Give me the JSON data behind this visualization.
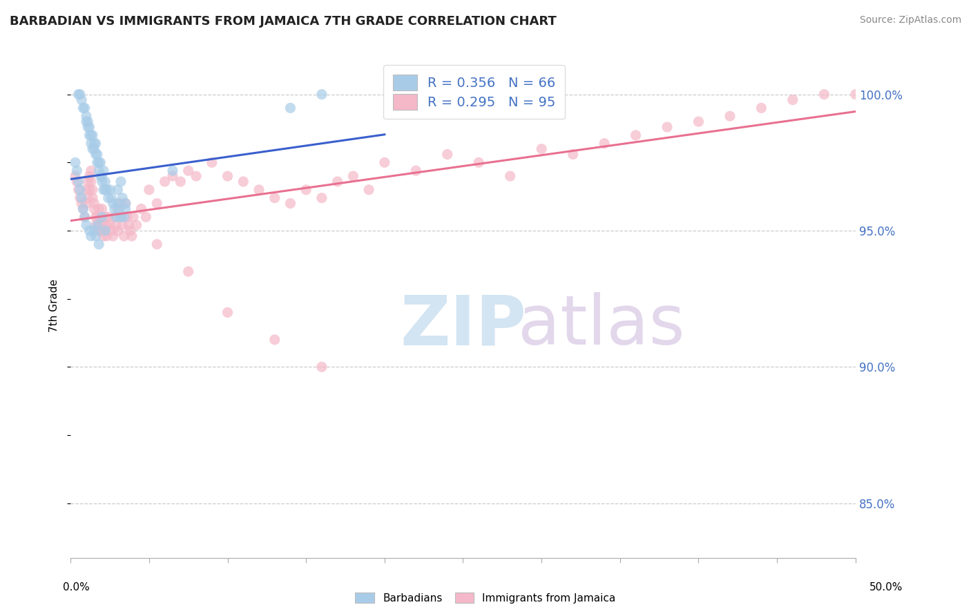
{
  "title": "BARBADIAN VS IMMIGRANTS FROM JAMAICA 7TH GRADE CORRELATION CHART",
  "source": "Source: ZipAtlas.com",
  "ylabel": "7th Grade",
  "ylabel_right_ticks": [
    "85.0%",
    "90.0%",
    "95.0%",
    "100.0%"
  ],
  "ylabel_right_values": [
    85.0,
    90.0,
    95.0,
    100.0
  ],
  "xlim": [
    0.0,
    50.0
  ],
  "ylim": [
    83.0,
    101.5
  ],
  "legend_blue_label": "R = 0.356   N = 66",
  "legend_pink_label": "R = 0.295   N = 95",
  "blue_color": "#a8cce8",
  "pink_color": "#f4b8c8",
  "trend_blue": "#3a5fcd",
  "trend_pink": "#e87090",
  "barbadians_x": [
    0.5,
    0.6,
    0.7,
    0.8,
    0.9,
    1.0,
    1.0,
    1.1,
    1.1,
    1.2,
    1.2,
    1.3,
    1.3,
    1.4,
    1.4,
    1.5,
    1.5,
    1.6,
    1.6,
    1.7,
    1.7,
    1.8,
    1.8,
    1.9,
    1.9,
    2.0,
    2.0,
    2.1,
    2.1,
    2.2,
    2.2,
    2.3,
    2.4,
    2.5,
    2.6,
    2.7,
    2.8,
    2.9,
    3.0,
    3.1,
    3.2,
    3.3,
    3.4,
    3.5,
    0.3,
    0.4,
    0.5,
    0.6,
    0.7,
    0.8,
    0.9,
    1.0,
    1.2,
    1.3,
    1.5,
    1.6,
    1.7,
    1.8,
    2.0,
    2.2,
    3.0,
    3.2,
    3.5,
    6.5,
    14.0,
    16.0
  ],
  "barbadians_y": [
    100.0,
    100.0,
    99.8,
    99.5,
    99.5,
    99.2,
    99.0,
    99.0,
    98.8,
    98.5,
    98.8,
    98.5,
    98.2,
    98.0,
    98.5,
    98.2,
    98.0,
    97.8,
    98.2,
    97.5,
    97.8,
    97.5,
    97.2,
    97.5,
    97.0,
    97.0,
    96.8,
    96.5,
    97.2,
    96.5,
    96.8,
    96.5,
    96.2,
    96.5,
    96.2,
    96.0,
    95.8,
    95.5,
    96.0,
    95.8,
    95.5,
    96.2,
    95.5,
    96.0,
    97.5,
    97.2,
    96.8,
    96.5,
    96.2,
    95.8,
    95.5,
    95.2,
    95.0,
    94.8,
    95.0,
    94.8,
    95.2,
    94.5,
    95.5,
    95.0,
    96.5,
    96.8,
    95.8,
    97.2,
    99.5,
    100.0
  ],
  "jamaica_x": [
    0.3,
    0.4,
    0.5,
    0.6,
    0.7,
    0.8,
    0.9,
    1.0,
    1.0,
    1.1,
    1.1,
    1.2,
    1.2,
    1.3,
    1.3,
    1.4,
    1.4,
    1.5,
    1.5,
    1.6,
    1.6,
    1.7,
    1.7,
    1.8,
    1.8,
    1.9,
    1.9,
    2.0,
    2.0,
    2.1,
    2.1,
    2.2,
    2.2,
    2.3,
    2.3,
    2.4,
    2.5,
    2.6,
    2.7,
    2.8,
    2.9,
    3.0,
    3.0,
    3.1,
    3.2,
    3.3,
    3.4,
    3.5,
    3.6,
    3.7,
    3.8,
    3.9,
    4.0,
    4.2,
    4.5,
    4.8,
    5.0,
    5.5,
    6.0,
    6.5,
    7.0,
    7.5,
    8.0,
    9.0,
    10.0,
    11.0,
    12.0,
    13.0,
    14.0,
    15.0,
    16.0,
    17.0,
    18.0,
    19.0,
    20.0,
    22.0,
    24.0,
    26.0,
    28.0,
    30.0,
    32.0,
    34.0,
    36.0,
    38.0,
    40.0,
    42.0,
    44.0,
    46.0,
    48.0,
    50.0,
    5.5,
    7.5,
    10.0,
    13.0,
    16.0
  ],
  "jamaica_y": [
    97.0,
    96.8,
    96.5,
    96.2,
    96.0,
    95.8,
    95.5,
    96.5,
    96.0,
    96.8,
    96.2,
    97.0,
    96.5,
    97.2,
    96.8,
    96.5,
    96.2,
    96.0,
    95.8,
    95.5,
    95.2,
    95.5,
    95.0,
    95.8,
    95.2,
    95.5,
    95.0,
    95.8,
    95.2,
    95.0,
    94.8,
    95.5,
    95.0,
    95.2,
    94.8,
    95.5,
    95.2,
    95.0,
    94.8,
    95.5,
    95.2,
    95.8,
    95.0,
    96.0,
    95.5,
    95.2,
    94.8,
    96.0,
    95.5,
    95.2,
    95.0,
    94.8,
    95.5,
    95.2,
    95.8,
    95.5,
    96.5,
    96.0,
    96.8,
    97.0,
    96.8,
    97.2,
    97.0,
    97.5,
    97.0,
    96.8,
    96.5,
    96.2,
    96.0,
    96.5,
    96.2,
    96.8,
    97.0,
    96.5,
    97.5,
    97.2,
    97.8,
    97.5,
    97.0,
    98.0,
    97.8,
    98.2,
    98.5,
    98.8,
    99.0,
    99.2,
    99.5,
    99.8,
    100.0,
    100.0,
    94.5,
    93.5,
    92.0,
    91.0,
    90.0
  ]
}
